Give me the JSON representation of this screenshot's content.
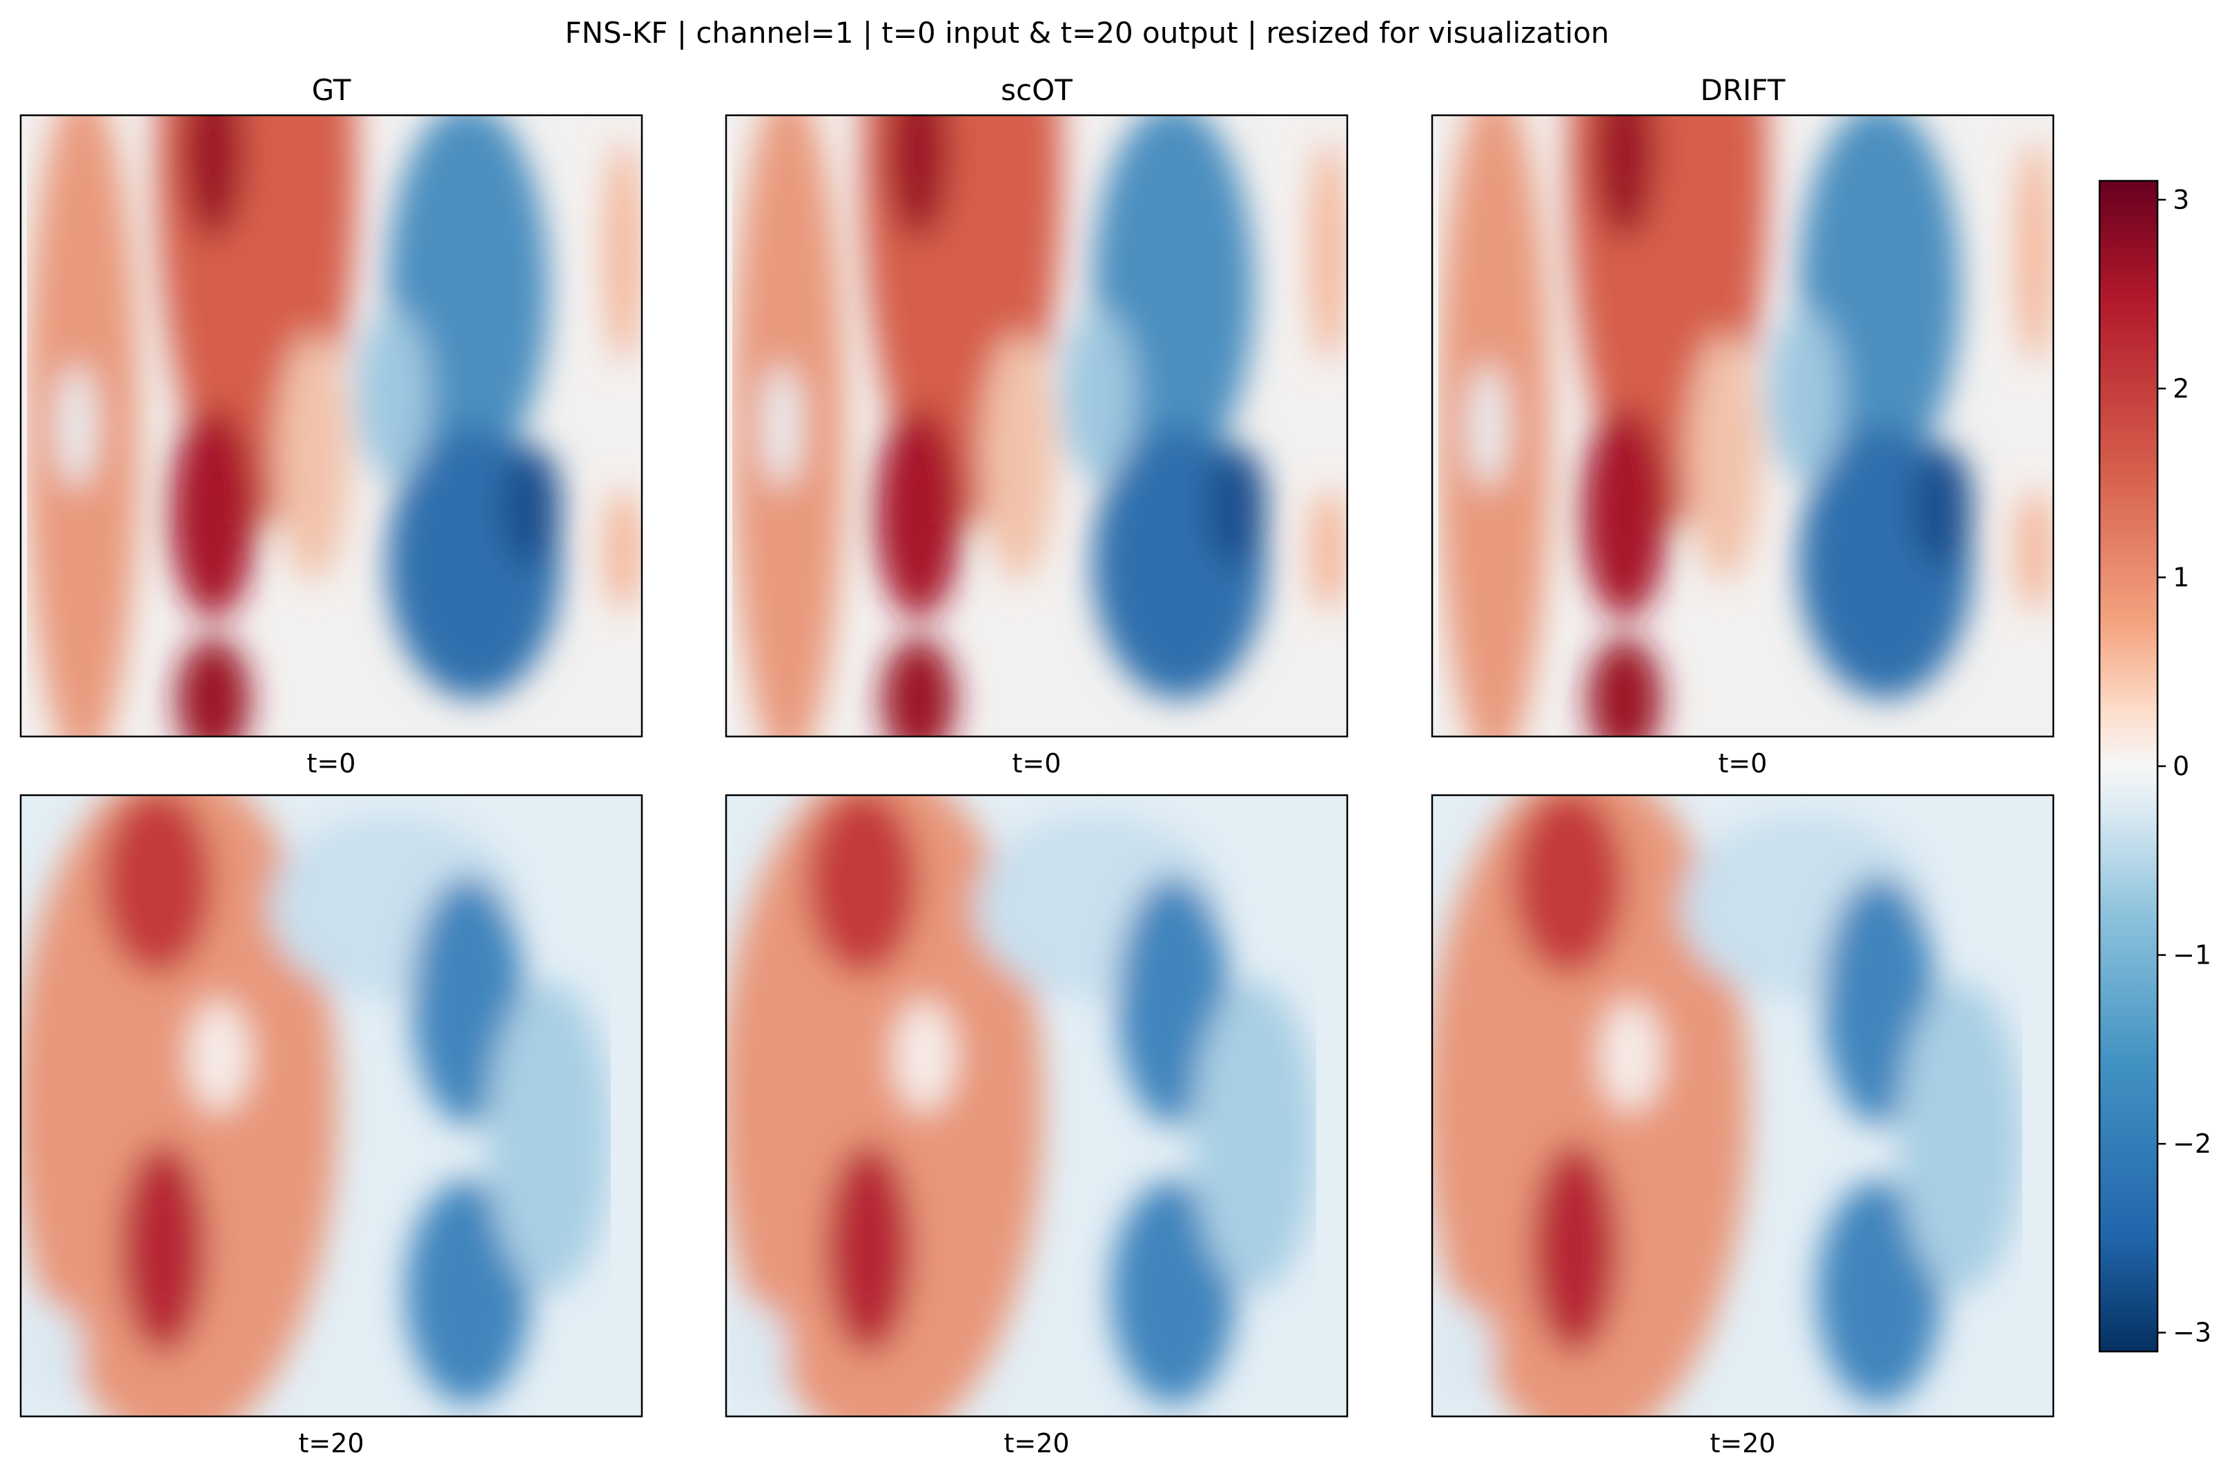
{
  "figure": {
    "title": "FNS-KF | channel=1 | t=0 input & t=20 output | resized for visualization"
  },
  "colors": {
    "frame": "#000000",
    "background": "#ffffff"
  },
  "chart_data": {
    "type": "heatmap",
    "colormap": "RdBu_r",
    "columns": [
      "GT",
      "scOT",
      "DRIFT"
    ],
    "rows": [
      "t=0",
      "t=20"
    ],
    "colorbar": {
      "range": [
        -3.1,
        3.1
      ],
      "ticks": [
        3,
        2,
        1,
        0,
        -1,
        -2,
        -3
      ],
      "tick_labels": [
        "3",
        "2",
        "1",
        "0",
        "−1",
        "−2",
        "−3"
      ]
    },
    "panels": [
      {
        "column": "GT",
        "row": "t=0",
        "xlabel": "t=0"
      },
      {
        "column": "scOT",
        "row": "t=0",
        "xlabel": "t=0"
      },
      {
        "column": "DRIFT",
        "row": "t=0",
        "xlabel": "t=0"
      },
      {
        "column": "GT",
        "row": "t=20",
        "xlabel": "t=20"
      },
      {
        "column": "scOT",
        "row": "t=20",
        "xlabel": "t=20"
      },
      {
        "column": "DRIFT",
        "row": "t=20",
        "xlabel": "t=20"
      }
    ]
  }
}
